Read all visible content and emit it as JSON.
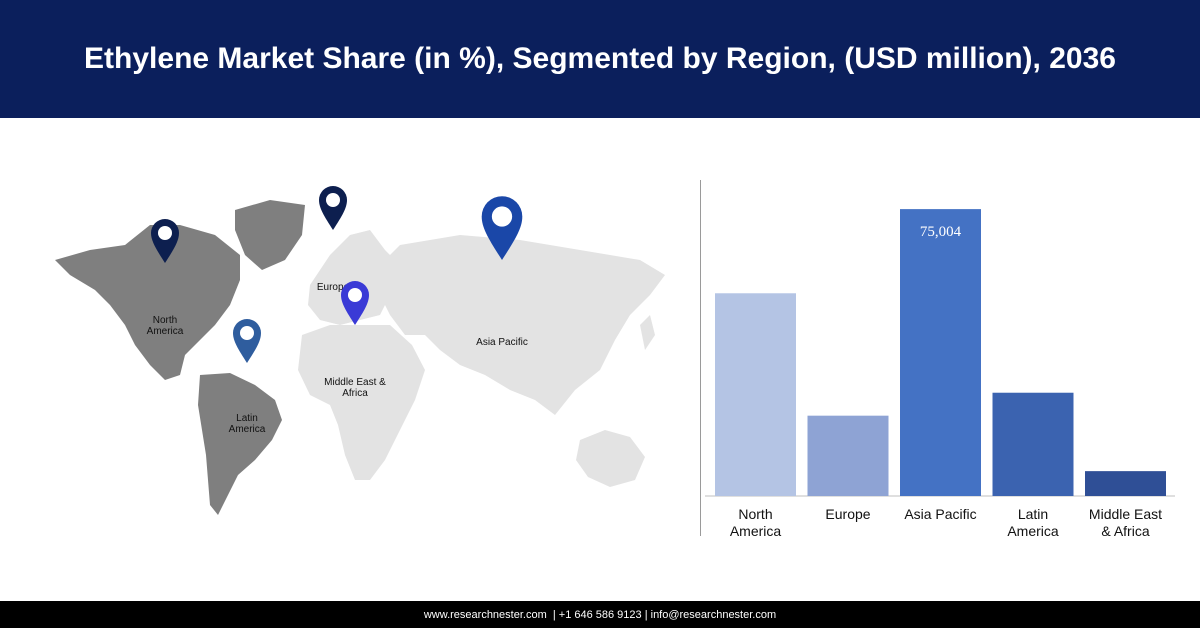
{
  "header": {
    "title": "Ethylene Market Share (in %), Segmented by Region, (USD million), 2036"
  },
  "map": {
    "pins": [
      {
        "label_lines": [
          "North",
          "America"
        ],
        "color": "#0d1f4f"
      },
      {
        "label_lines": [
          "Europe"
        ],
        "color": "#0d1f4f"
      },
      {
        "label_lines": [
          "Middle East &",
          "Africa"
        ],
        "color": "#3a3ad6"
      },
      {
        "label_lines": [
          "Latin",
          "America"
        ],
        "color": "#2f5d9e"
      },
      {
        "label_lines": [
          "Asia Pacific"
        ],
        "color": "#1a47a8"
      }
    ]
  },
  "chart_data": {
    "type": "bar",
    "title": "",
    "xlabel": "",
    "ylabel": "",
    "ylim": [
      0,
      80000
    ],
    "categories": [
      [
        "North",
        "America"
      ],
      [
        "Europe"
      ],
      [
        "Asia Pacific"
      ],
      [
        "Latin",
        "America"
      ],
      [
        "Middle East",
        "& Africa"
      ]
    ],
    "values": [
      53000,
      21000,
      75004,
      27000,
      6500
    ],
    "colors": [
      "#b4c4e4",
      "#8ea3d4",
      "#4472c4",
      "#3b63b0",
      "#2f4f96"
    ],
    "data_labels": [
      "",
      "",
      "75,004",
      "",
      ""
    ],
    "grid": false,
    "legend": "none"
  },
  "footer": {
    "text": "www.researchnester.com  | +1 646 586 9123 | info@researchnester.com"
  }
}
